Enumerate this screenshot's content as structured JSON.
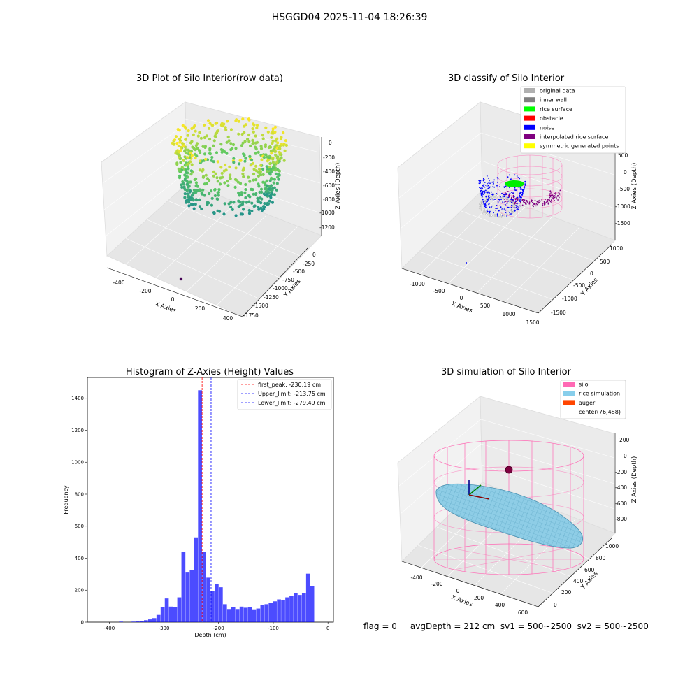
{
  "figure": {
    "suptitle": "HSGGD04 2025-11-04 18:26:39",
    "footer": "flag = 0     avgDepth = 212 cm  sv1 = 500~2500  sv2 = 500~2500"
  },
  "chart_data": [
    {
      "type": "scatter",
      "projection": "3d",
      "title": "3D Plot of Silo Interior(row data)",
      "xlabel": "X Axies",
      "ylabel": "Y Axies",
      "zlabel": "Z Axies (Depth)",
      "x_ticks": [
        "-400",
        "-200",
        "0",
        "200",
        "400"
      ],
      "y_ticks": [
        "0",
        "-250",
        "-500",
        "-750",
        "-1000",
        "-1250",
        "-1500",
        "-1750"
      ],
      "z_ticks": [
        "0",
        "-200",
        "-400",
        "-600",
        "-800",
        "-1000",
        "-1200"
      ],
      "xlim": [
        -450,
        450
      ],
      "ylim": [
        -1800,
        100
      ],
      "zlim": [
        -1300,
        100
      ],
      "colormap": "viridis",
      "shape": "ring of points around x≈0, y≈-600, radius ≈350, z from ≈-1100 (teal) to ≈0 (yellow)",
      "outlier_point": {
        "x": 0,
        "y": -1750,
        "z": -1300,
        "color": "#440154"
      }
    },
    {
      "type": "scatter",
      "projection": "3d",
      "title": "3D classify of Silo Interior",
      "zlabel": "Z Axies (Depth)",
      "xlabel": "X Axies",
      "ylabel": "Y Axies",
      "x_ticks": [
        "-1000",
        "-500",
        "0",
        "500",
        "1000",
        "1500"
      ],
      "y_ticks": [
        "1000",
        "500",
        "0",
        "-500",
        "-1000",
        "-1500"
      ],
      "z_ticks": [
        "500",
        "0",
        "-500",
        "-1000",
        "-1500"
      ],
      "legend_position": "top-right",
      "legend": [
        {
          "label": "original data",
          "color": "#b0b0b0"
        },
        {
          "label": "inner wall",
          "color": "#808080"
        },
        {
          "label": "rice surface",
          "color": "#00ff00"
        },
        {
          "label": "obstacle",
          "color": "#ff0000"
        },
        {
          "label": "noise",
          "color": "#0000ff"
        },
        {
          "label": "interpolated rice surface",
          "color": "#800080"
        },
        {
          "label": "symmetric generated points",
          "color": "#ffff00"
        }
      ]
    },
    {
      "type": "bar",
      "title": "Histogram of Z-Axies (Height) Values",
      "xlabel": "Depth (cm)",
      "ylabel": "Frequency",
      "xlim": [
        -440,
        10
      ],
      "ylim": [
        0,
        1530
      ],
      "x_ticks": [
        -400,
        -300,
        -200,
        -100,
        0
      ],
      "y_ticks": [
        0,
        200,
        400,
        600,
        800,
        1000,
        1200,
        1400
      ],
      "bar_color": "#0000ff",
      "bin_width": 7.6,
      "bins": [
        {
          "x0": -420,
          "count": 0
        },
        {
          "x0": -412.4,
          "count": 0
        },
        {
          "x0": -404.8,
          "count": 0
        },
        {
          "x0": -397.2,
          "count": 0
        },
        {
          "x0": -389.6,
          "count": 0
        },
        {
          "x0": -382,
          "count": 3
        },
        {
          "x0": -374.4,
          "count": 0
        },
        {
          "x0": -366.8,
          "count": 0
        },
        {
          "x0": -359.2,
          "count": 3
        },
        {
          "x0": -351.6,
          "count": 4
        },
        {
          "x0": -344,
          "count": 7
        },
        {
          "x0": -336.4,
          "count": 12
        },
        {
          "x0": -328.8,
          "count": 17
        },
        {
          "x0": -321.2,
          "count": 25
        },
        {
          "x0": -313.6,
          "count": 45
        },
        {
          "x0": -306,
          "count": 95
        },
        {
          "x0": -298.4,
          "count": 148
        },
        {
          "x0": -290.8,
          "count": 97
        },
        {
          "x0": -283.2,
          "count": 92
        },
        {
          "x0": -275.6,
          "count": 155
        },
        {
          "x0": -268,
          "count": 438
        },
        {
          "x0": -260.4,
          "count": 310
        },
        {
          "x0": -252.8,
          "count": 325
        },
        {
          "x0": -245.2,
          "count": 530
        },
        {
          "x0": -237.6,
          "count": 1450
        },
        {
          "x0": -230,
          "count": 440
        },
        {
          "x0": -222.4,
          "count": 278
        },
        {
          "x0": -214.8,
          "count": 195
        },
        {
          "x0": -207.2,
          "count": 238
        },
        {
          "x0": -199.6,
          "count": 218
        },
        {
          "x0": -192,
          "count": 112
        },
        {
          "x0": -184.4,
          "count": 82
        },
        {
          "x0": -176.8,
          "count": 92
        },
        {
          "x0": -169.2,
          "count": 82
        },
        {
          "x0": -161.6,
          "count": 97
        },
        {
          "x0": -154,
          "count": 90
        },
        {
          "x0": -146.4,
          "count": 95
        },
        {
          "x0": -138.8,
          "count": 80
        },
        {
          "x0": -131.2,
          "count": 85
        },
        {
          "x0": -123.6,
          "count": 107
        },
        {
          "x0": -116,
          "count": 112
        },
        {
          "x0": -108.4,
          "count": 120
        },
        {
          "x0": -100.8,
          "count": 130
        },
        {
          "x0": -93.2,
          "count": 142
        },
        {
          "x0": -85.6,
          "count": 140
        },
        {
          "x0": -78,
          "count": 155
        },
        {
          "x0": -70.4,
          "count": 165
        },
        {
          "x0": -62.8,
          "count": 180
        },
        {
          "x0": -55.2,
          "count": 170
        },
        {
          "x0": -47.6,
          "count": 182
        },
        {
          "x0": -40,
          "count": 303
        },
        {
          "x0": -32.4,
          "count": 225
        }
      ],
      "lines": [
        {
          "label": "first_peak: -230.19 cm",
          "x": -230.19,
          "color": "#ff0000",
          "dash": "dashed"
        },
        {
          "label": "Upper_limit: -213.75 cm",
          "x": -213.75,
          "color": "#0000ff",
          "dash": "dashed"
        },
        {
          "label": "Lower_limit: -279.49 cm",
          "x": -279.49,
          "color": "#0000ff",
          "dash": "dashed"
        }
      ],
      "legend_position": "top-right"
    },
    {
      "type": "surface",
      "projection": "3d",
      "title": "3D simulation of Silo Interior",
      "xlabel": "X Axies",
      "ylabel": "Y Axies",
      "zlabel": "Z Axies (Depth)",
      "x_ticks": [
        "-400",
        "-200",
        "0",
        "200",
        "400",
        "600"
      ],
      "y_ticks": [
        "0",
        "200",
        "400",
        "600",
        "800",
        "1000"
      ],
      "z_ticks": [
        "200",
        "0",
        "-200",
        "-400",
        "-600",
        "-800"
      ],
      "legend_position": "top-right",
      "legend": [
        {
          "label": "silo",
          "color": "#ff69b4"
        },
        {
          "label": "rice simulation",
          "color": "#87ceeb"
        },
        {
          "label": "auger",
          "color": "#ff4500"
        },
        {
          "label": "center(76,488)",
          "color": null
        }
      ]
    }
  ]
}
